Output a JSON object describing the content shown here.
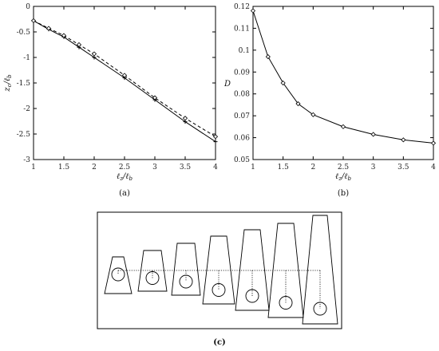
{
  "chart_data": [
    {
      "type": "line",
      "panel_label": "(a)",
      "xlabel": "ℓ_z/ℓ_b",
      "ylabel": "z_c/ℓ_b",
      "xlim": [
        1,
        4
      ],
      "ylim": [
        -3,
        0
      ],
      "x_ticks": [
        "1",
        "1.5",
        "2",
        "2.5",
        "3",
        "3.5",
        "4"
      ],
      "y_ticks": [
        "0",
        "-0.5",
        "-1",
        "-1.5",
        "-2",
        "-2.5",
        "-3"
      ],
      "grid": false,
      "series": [
        {
          "style": "solid",
          "marker": "cross",
          "x": [
            1,
            1.25,
            1.5,
            1.75,
            2,
            2.5,
            3,
            3.5,
            4
          ],
          "y": [
            -0.28,
            -0.45,
            -0.6,
            -0.8,
            -1.0,
            -1.4,
            -1.83,
            -2.26,
            -2.65
          ]
        },
        {
          "style": "dashed",
          "marker": "diamond",
          "x": [
            1,
            1.25,
            1.5,
            1.75,
            2,
            2.5,
            3,
            3.5,
            4
          ],
          "y": [
            -0.28,
            -0.43,
            -0.57,
            -0.75,
            -0.93,
            -1.35,
            -1.79,
            -2.19,
            -2.55
          ]
        }
      ]
    },
    {
      "type": "line",
      "panel_label": "(b)",
      "xlabel": "ℓ_z/ℓ_b",
      "ylabel": "D",
      "xlim": [
        1,
        4
      ],
      "ylim": [
        0.05,
        0.12
      ],
      "x_ticks": [
        "1",
        "1.5",
        "2",
        "2.5",
        "3",
        "3.5",
        "4"
      ],
      "y_ticks": [
        "0.12",
        "0.11",
        "0.1",
        "0.09",
        "0.08",
        "0.07",
        "0.06",
        "0.05"
      ],
      "grid": false,
      "series": [
        {
          "style": "solid",
          "marker": "diamond",
          "x": [
            1,
            1.25,
            1.5,
            1.75,
            2,
            2.5,
            3,
            3.5,
            4
          ],
          "y": [
            0.118,
            0.097,
            0.085,
            0.0755,
            0.0705,
            0.065,
            0.0615,
            0.059,
            0.0575
          ]
        }
      ]
    }
  ],
  "diagram": {
    "panel_label": "(c)",
    "shapes": 7
  }
}
